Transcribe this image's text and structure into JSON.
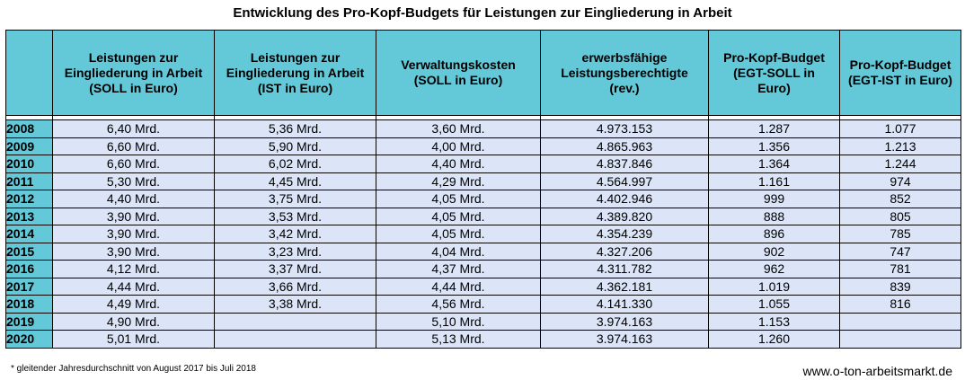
{
  "title": "Entwicklung des Pro-Kopf-Budgets für Leistungen zur Eingliederung in Arbeit",
  "chart_data": {
    "type": "table",
    "columns": [
      "",
      "Leistungen zur Eingliederung in Arbeit (SOLL in Euro)",
      "Leistungen zur Eingliederung in Arbeit (IST in Euro)",
      "Verwaltungskosten (SOLL in Euro)",
      "erwerbsfähige Leistungsberechtigte (rev.)",
      "Pro-Kopf-Budget (EGT-SOLL in Euro)",
      "Pro-Kopf-Budget (EGT-IST in Euro)"
    ],
    "header_lines": [
      [
        ""
      ],
      [
        "Leistungen zur",
        "Eingliederung in Arbeit",
        "(SOLL in Euro)"
      ],
      [
        "Leistungen zur",
        "Eingliederung in Arbeit",
        "(IST in Euro)"
      ],
      [
        "Verwaltungskosten",
        "(SOLL in Euro)"
      ],
      [
        "erwerbsfähige",
        "Leistungsberechtigte",
        "(rev.)"
      ],
      [
        "Pro-Kopf-Budget",
        "(EGT-SOLL in",
        "Euro)"
      ],
      [
        "Pro-Kopf-Budget",
        "(EGT-IST in Euro)"
      ]
    ],
    "rows": [
      [
        "2008",
        "6,40 Mrd.",
        "5,36 Mrd.",
        "3,60 Mrd.",
        "4.973.153",
        "1.287",
        "1.077"
      ],
      [
        "2009",
        "6,60 Mrd.",
        "5,90 Mrd.",
        "4,00 Mrd.",
        "4.865.963",
        "1.356",
        "1.213"
      ],
      [
        "2010",
        "6,60 Mrd.",
        "6,02 Mrd.",
        "4,40 Mrd.",
        "4.837.846",
        "1.364",
        "1.244"
      ],
      [
        "2011",
        "5,30 Mrd.",
        "4,45 Mrd.",
        "4,29 Mrd.",
        "4.564.997",
        "1.161",
        "974"
      ],
      [
        "2012",
        "4,40 Mrd.",
        "3,75 Mrd.",
        "4,05 Mrd.",
        "4.402.946",
        "999",
        "852"
      ],
      [
        "2013",
        "3,90 Mrd.",
        "3,53 Mrd.",
        "4,05 Mrd.",
        "4.389.820",
        "888",
        "805"
      ],
      [
        "2014",
        "3,90 Mrd.",
        "3,42 Mrd.",
        "4,05 Mrd.",
        "4.354.239",
        "896",
        "785"
      ],
      [
        "2015",
        "3,90 Mrd.",
        "3,23 Mrd.",
        "4,04 Mrd.",
        "4.327.206",
        "902",
        "747"
      ],
      [
        "2016",
        "4,12 Mrd.",
        "3,37 Mrd.",
        "4,37 Mrd.",
        "4.311.782",
        "962",
        "781"
      ],
      [
        "2017",
        "4,44 Mrd.",
        "3,66 Mrd.",
        "4,44 Mrd.",
        "4.362.181",
        "1.019",
        "839"
      ],
      [
        "2018",
        "4,49 Mrd.",
        "3,38 Mrd.",
        "4,56 Mrd.",
        "4.141.330",
        "1.055",
        "816"
      ],
      [
        "2019",
        "4,90 Mrd.",
        "",
        "5,10 Mrd.",
        "3.974.163",
        "1.153",
        ""
      ],
      [
        "2020",
        "5,01 Mrd.",
        "",
        "5,13 Mrd.",
        "3.974.163",
        "1.260",
        ""
      ]
    ],
    "footnote": "* gleitender Jahresdurchschnitt von August 2017 bis Juli 2018",
    "source": "www.o-ton-arbeitsmarkt.de",
    "colors": {
      "header_bg": "#63c8d8",
      "year_bg": "#63c8d8",
      "cell_bg": "#dbe5f7"
    }
  }
}
